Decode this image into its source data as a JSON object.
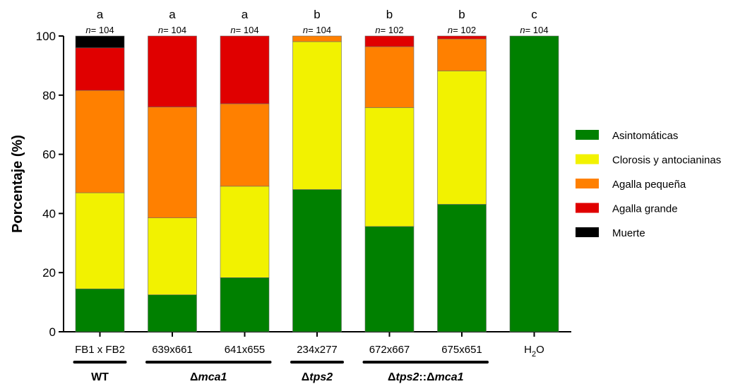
{
  "chart_data": {
    "type": "bar",
    "stacked": true,
    "ylabel": "Porcentaje (%)",
    "xlabel": "",
    "ylim": [
      0,
      100
    ],
    "yticks": [
      0,
      20,
      40,
      60,
      80,
      100
    ],
    "categories": [
      {
        "label": "FB1 x FB2",
        "sub": ""
      },
      {
        "label": "639x661",
        "sub": ""
      },
      {
        "label": "641x655",
        "sub": ""
      },
      {
        "label": "234x277",
        "sub": ""
      },
      {
        "label": "672x667",
        "sub": ""
      },
      {
        "label": "675x651",
        "sub": ""
      },
      {
        "label": "H",
        "sub": "2",
        "suffix": "O"
      }
    ],
    "significance": [
      "a",
      "a",
      "a",
      "b",
      "b",
      "b",
      "c"
    ],
    "n_prefix": "n",
    "n_values": [
      "= 104",
      "= 104",
      "= 104",
      "= 104",
      "= 102",
      "= 102",
      "= 104"
    ],
    "series": [
      {
        "name": "Asintomáticas",
        "color": "#008000",
        "values": [
          14.5,
          12.5,
          18.3,
          48.1,
          35.6,
          43.1,
          100
        ]
      },
      {
        "name": "Clorosis y antocianinas",
        "color": "#f2f200",
        "values": [
          32.5,
          26.0,
          30.9,
          50.0,
          40.2,
          45.1,
          0
        ]
      },
      {
        "name": "Agalla pequeña",
        "color": "#ff8000",
        "values": [
          34.6,
          37.5,
          27.9,
          1.9,
          20.6,
          10.8,
          0
        ]
      },
      {
        "name": "Agalla grande",
        "color": "#e00000",
        "values": [
          14.4,
          24.0,
          22.9,
          0,
          3.6,
          1.0,
          0
        ]
      },
      {
        "name": "Muerte",
        "color": "#000000",
        "values": [
          4.0,
          0,
          0,
          0,
          0,
          0,
          0
        ]
      }
    ],
    "legend_position": "right",
    "groups": [
      {
        "label": "WT",
        "from": 0,
        "to": 0
      },
      {
        "label": "Δmca1",
        "prefix": "Δ",
        "main": "mca1",
        "from": 1,
        "to": 2
      },
      {
        "label": "Δtps2",
        "prefix": "Δ",
        "main": "tps2",
        "from": 3,
        "to": 3
      },
      {
        "label": "Δtps2::Δmca1",
        "prefix": "Δ",
        "main": "tps2",
        "mid": "::",
        "prefix2": "Δ",
        "main2": "mca1",
        "from": 4,
        "to": 5
      }
    ]
  }
}
